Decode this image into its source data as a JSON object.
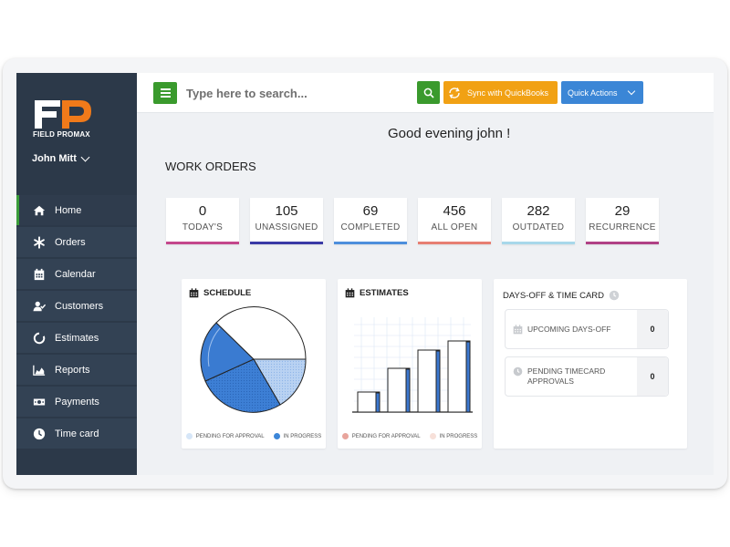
{
  "brand": {
    "logo_letters": "FP",
    "name": "FIELD PROMAX"
  },
  "user": {
    "name": "John Mitt"
  },
  "sidebar": {
    "items": [
      {
        "label": "Home",
        "icon": "home-icon"
      },
      {
        "label": "Orders",
        "icon": "asterisk-icon"
      },
      {
        "label": "Calendar",
        "icon": "calendar-icon"
      },
      {
        "label": "Customers",
        "icon": "user-check-icon"
      },
      {
        "label": "Estimates",
        "icon": "circle-notch-icon"
      },
      {
        "label": "Reports",
        "icon": "area-chart-icon"
      },
      {
        "label": "Payments",
        "icon": "money-icon"
      },
      {
        "label": "Time card",
        "icon": "clock-icon"
      }
    ],
    "active_index": 0
  },
  "topbar": {
    "search_placeholder": "Type here to search...",
    "sync_label": "Sync with QuickBooks",
    "quick_actions_label": "Quick Actions"
  },
  "main": {
    "greeting": "Good evening john !",
    "work_orders_title": "WORK ORDERS",
    "stats": [
      {
        "value": "0",
        "label": "TODAY'S",
        "color": "#c4478c"
      },
      {
        "value": "105",
        "label": "UNASSIGNED",
        "color": "#3a3aa6"
      },
      {
        "value": "69",
        "label": "COMPLETED",
        "color": "#4d8fdc"
      },
      {
        "value": "456",
        "label": "ALL OPEN",
        "color": "#e77f72"
      },
      {
        "value": "282",
        "label": "OUTDATED",
        "color": "#a8d8ea"
      },
      {
        "value": "29",
        "label": "RECURRENCE",
        "color": "#b04185"
      }
    ],
    "schedule": {
      "title": "SCHEDULE",
      "legend": [
        {
          "label": "PENDING FOR APPROVAL",
          "color": "#d6e6f8"
        },
        {
          "label": "IN PROGRESS",
          "color": "#3c86d8"
        }
      ]
    },
    "estimates": {
      "title": "ESTIMATES",
      "legend": [
        {
          "label": "PENDING FOR APPROVAL",
          "color": "#e8a49c"
        },
        {
          "label": "IN PROGRESS",
          "color": "#f7e0d9"
        }
      ]
    },
    "days_off": {
      "title": "DAYS-OFF & TIME CARD",
      "rows": [
        {
          "label": "UPCOMING DAYS-OFF",
          "count": "0"
        },
        {
          "label_line1": "PENDING TIMECARD",
          "label_line2": "APPROVALS",
          "count": "0"
        }
      ]
    }
  }
}
